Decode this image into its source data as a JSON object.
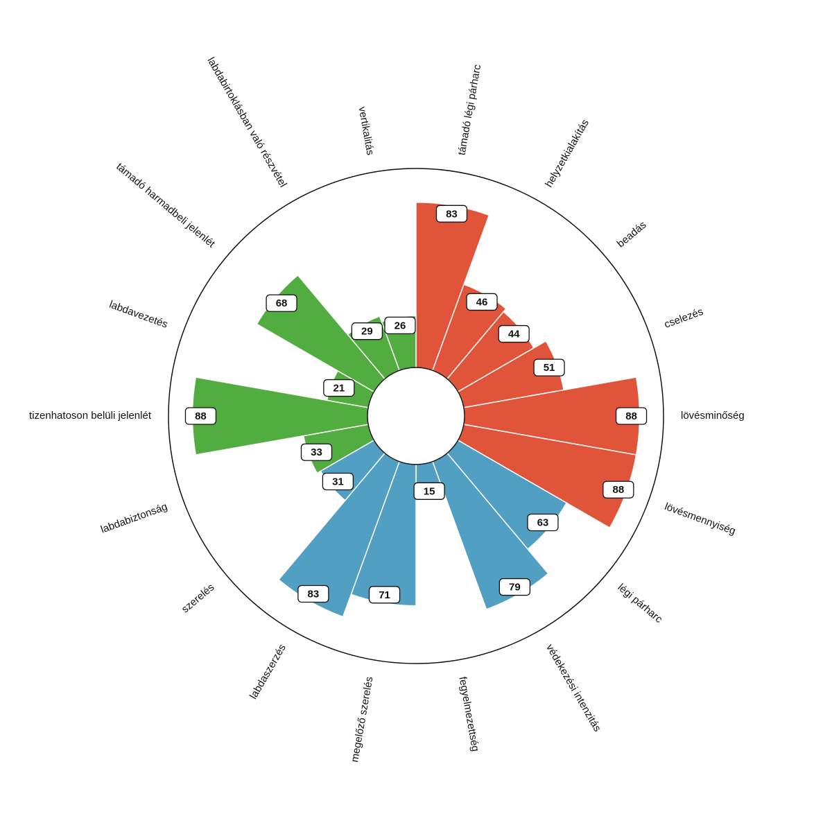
{
  "chart_data": {
    "type": "polar_bar",
    "categories": [
      "támadó légi párharc",
      "helyzetkialakítás",
      "beadás",
      "cselezés",
      "lövésminőség",
      "lövésmennyiség",
      "légi párharc",
      "védekezési intenzitás",
      "fegyelmezettség",
      "megelőző szerelés",
      "labdaszerzés",
      "szerelés",
      "labdabiztonság",
      "tizenhatoson belüli jelenlét",
      "labdavezetés",
      "támadó harmadbeli jelenlét",
      "labdabirtoklásban való részvétel",
      "vertikalitás"
    ],
    "values": [
      83,
      46,
      44,
      51,
      88,
      88,
      63,
      79,
      15,
      71,
      83,
      31,
      33,
      88,
      21,
      68,
      29,
      26
    ],
    "colors": [
      "#e0553a",
      "#e0553a",
      "#e0553a",
      "#e0553a",
      "#e0553a",
      "#e0553a",
      "#519fc3",
      "#519fc3",
      "#519fc3",
      "#519fc3",
      "#519fc3",
      "#519fc3",
      "#52ad40",
      "#52ad40",
      "#52ad40",
      "#52ad40",
      "#52ad40",
      "#52ad40"
    ],
    "ylim": [
      0,
      100
    ]
  }
}
